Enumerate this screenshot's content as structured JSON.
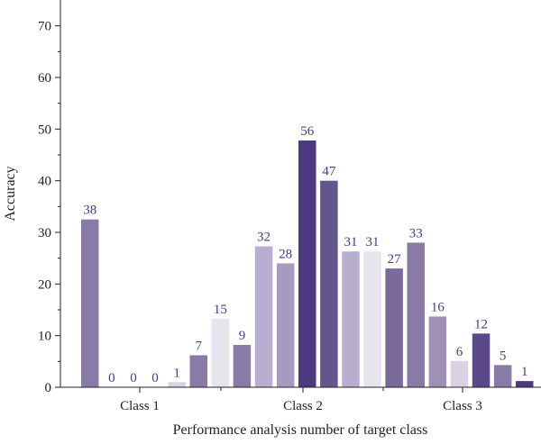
{
  "chart_data": {
    "type": "bar",
    "title": "",
    "xlabel": "Performance analysis number of target class",
    "ylabel": "Accuracy",
    "ylim": [
      0,
      75
    ],
    "yticks": [
      0,
      10,
      20,
      30,
      40,
      50,
      60,
      70
    ],
    "group_labels": [
      "Class 1",
      "Class 2",
      "Class 3"
    ],
    "legend": "none",
    "grid": false,
    "label_color": "#4d3a7e",
    "bars": [
      {
        "value": 32.5,
        "label": "38",
        "color": "#8a7aa8"
      },
      {
        "value": 0,
        "label": "0",
        "color": "#8a7aa8"
      },
      {
        "value": 0,
        "label": "0",
        "color": "#8a7aa8"
      },
      {
        "value": 0,
        "label": "0",
        "color": "#8a7aa8"
      },
      {
        "value": 1,
        "label": "1",
        "color": "#d8d2e3"
      },
      {
        "value": 6.2,
        "label": "7",
        "color": "#8a7aa8"
      },
      {
        "value": 13.3,
        "label": "15",
        "color": "#e8e4ee"
      },
      {
        "value": 8.2,
        "label": "9",
        "color": "#8a7aa8"
      },
      {
        "value": 27.3,
        "label": "32",
        "color": "#b7aed0"
      },
      {
        "value": 24,
        "label": "28",
        "color": "#a69bbf"
      },
      {
        "value": 47.8,
        "label": "56",
        "color": "#4d3a7e"
      },
      {
        "value": 40,
        "label": "47",
        "color": "#65558d"
      },
      {
        "value": 26.3,
        "label": "31",
        "color": "#b7aed0"
      },
      {
        "value": 26.3,
        "label": "31",
        "color": "#e8e4ee"
      },
      {
        "value": 23,
        "label": "27",
        "color": "#7a6b9c"
      },
      {
        "value": 28,
        "label": "33",
        "color": "#8a7aa8"
      },
      {
        "value": 13.7,
        "label": "16",
        "color": "#9d91b6"
      },
      {
        "value": 5.1,
        "label": "6",
        "color": "#d8d2e3"
      },
      {
        "value": 10.4,
        "label": "12",
        "color": "#5b4888"
      },
      {
        "value": 4.3,
        "label": "5",
        "color": "#8a7aa8"
      },
      {
        "value": 1.2,
        "label": "1",
        "color": "#4d3a7e"
      }
    ]
  }
}
